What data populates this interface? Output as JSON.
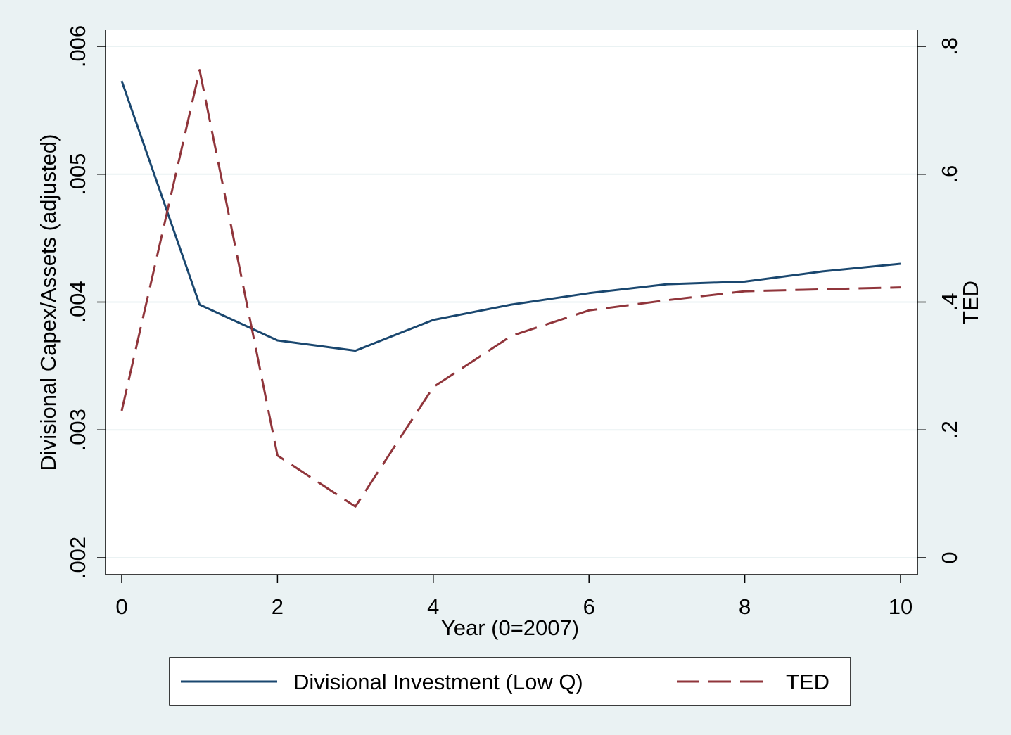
{
  "chart_data": {
    "type": "line",
    "xlabel": "Year (0=2007)",
    "ylabel_left": "Divisional Capex/Assets (adjusted)",
    "ylabel_right": "TED",
    "x_ticks": [
      0,
      2,
      4,
      6,
      8,
      10
    ],
    "x_tick_labels": [
      "0",
      "2",
      "4",
      "6",
      "8",
      "10"
    ],
    "xlim": [
      0,
      10
    ],
    "y_left_ticks": [
      0.002,
      0.003,
      0.004,
      0.005,
      0.006
    ],
    "y_left_tick_labels": [
      ".002",
      ".003",
      ".004",
      ".005",
      ".006"
    ],
    "ylim_left": [
      0.002,
      0.006
    ],
    "y_right_ticks": [
      0,
      0.2,
      0.4,
      0.6,
      0.8
    ],
    "y_right_tick_labels": [
      "0",
      ".2",
      ".4",
      ".6",
      ".8"
    ],
    "ylim_right": [
      0,
      0.8
    ],
    "grid": true,
    "legend_position": "bottom",
    "series": [
      {
        "name": "Divisional Investment (Low Q)",
        "axis": "left",
        "style": "solid",
        "color": "#1a476f",
        "x": [
          0,
          1,
          2,
          3,
          4,
          5,
          6,
          7,
          8,
          9,
          10
        ],
        "values": [
          0.00573,
          0.00398,
          0.0037,
          0.00362,
          0.00386,
          0.00398,
          0.00407,
          0.00414,
          0.00416,
          0.00424,
          0.0043
        ]
      },
      {
        "name": "TED",
        "axis": "right",
        "style": "dashed",
        "color": "#90353b",
        "x": [
          0,
          1,
          2,
          3,
          4,
          5,
          6,
          7,
          8,
          9,
          10
        ],
        "values": [
          0.23,
          0.763,
          0.16,
          0.08,
          0.267,
          0.347,
          0.387,
          0.403,
          0.417,
          0.42,
          0.423
        ]
      }
    ]
  },
  "colors": {
    "outer_background": "#eaf2f3",
    "plot_background": "#ffffff",
    "grid": "#eaf2f3",
    "axis": "#000000"
  }
}
